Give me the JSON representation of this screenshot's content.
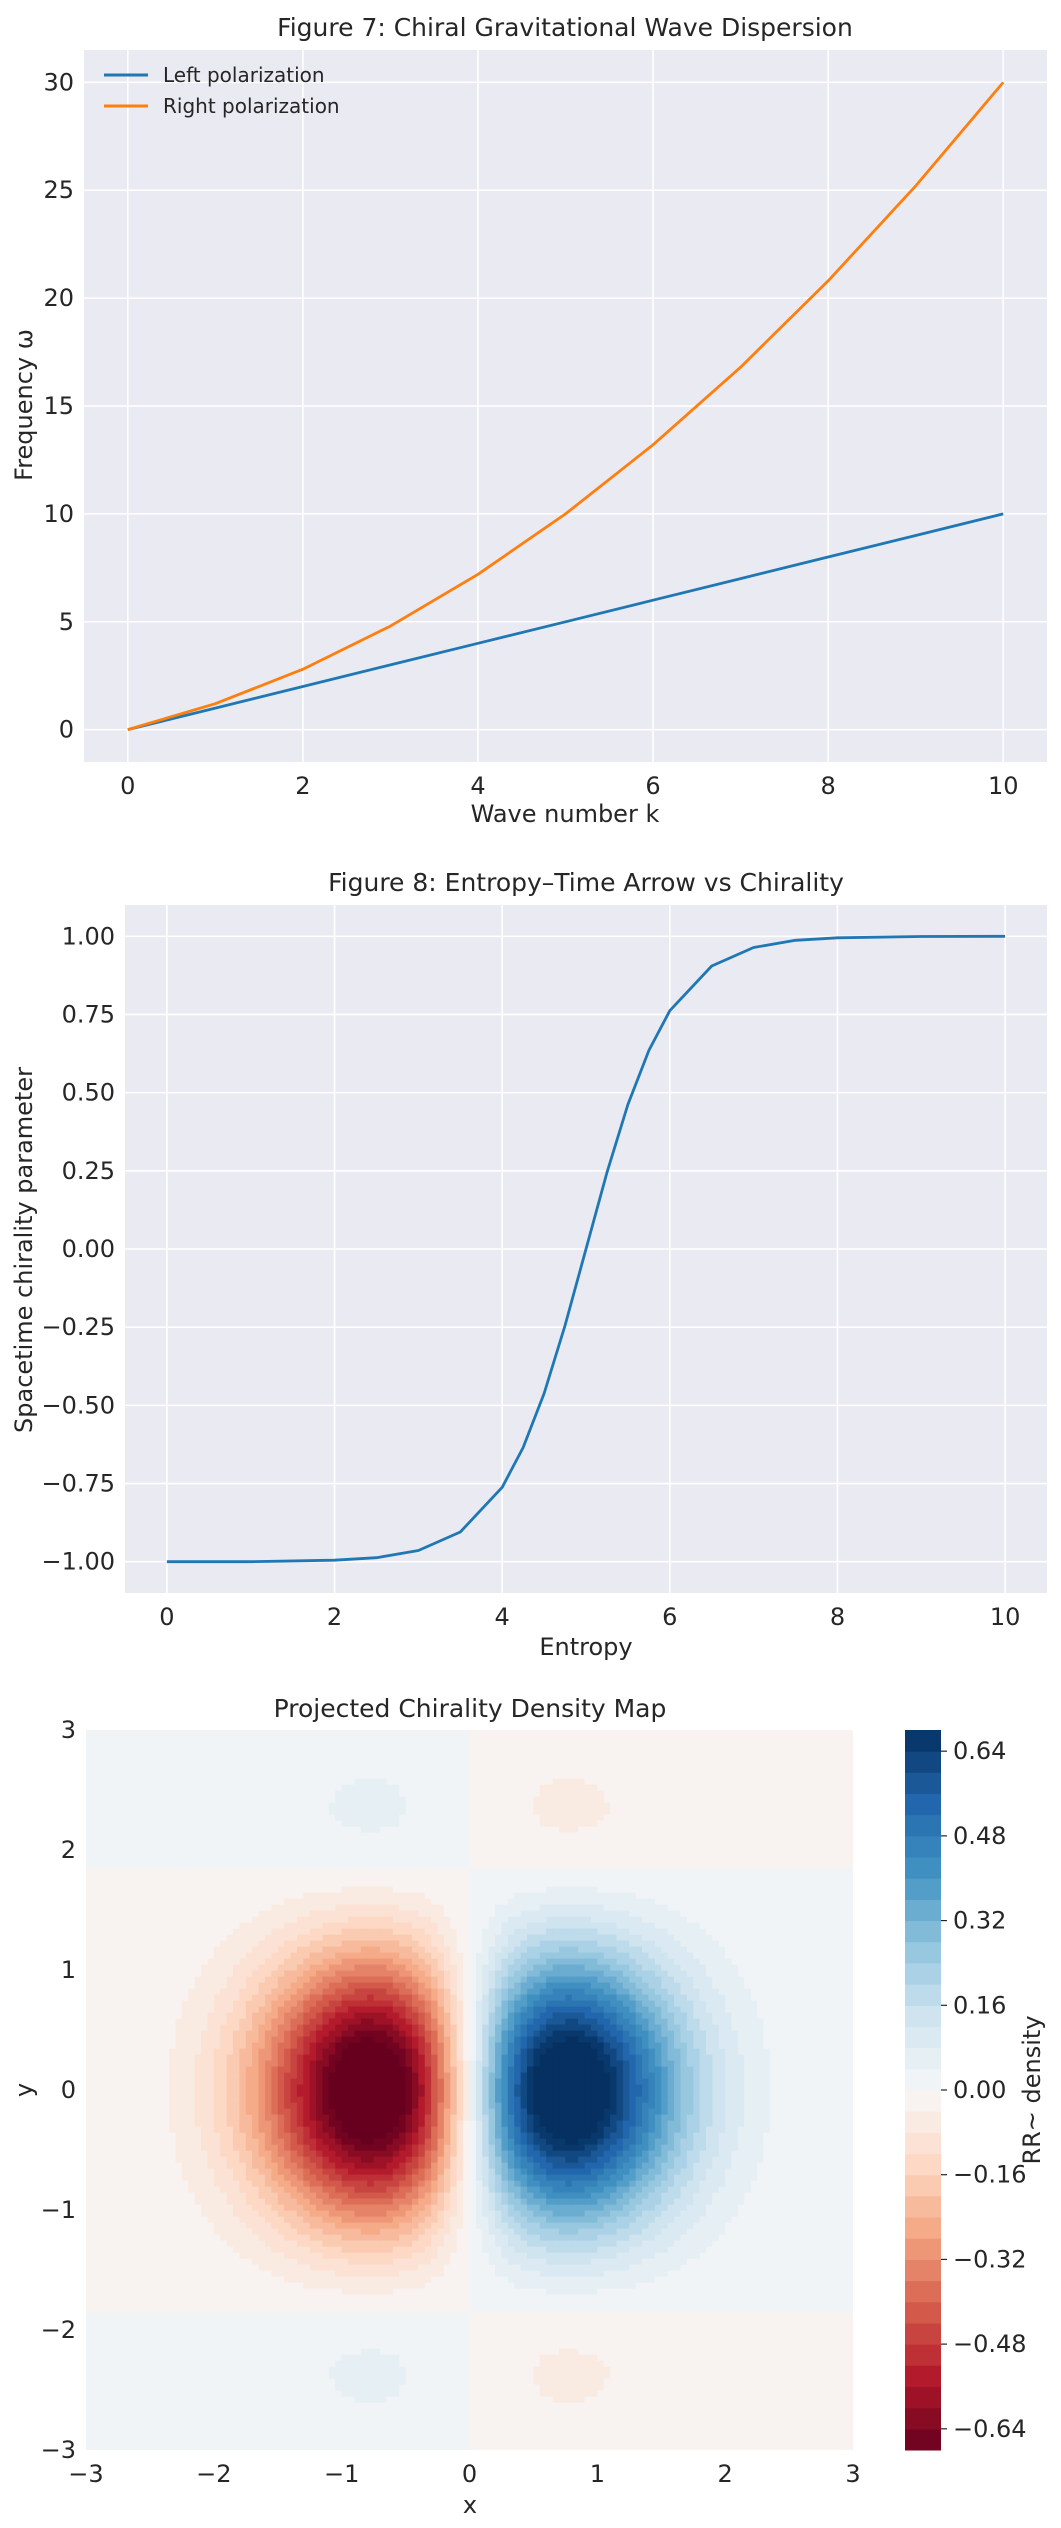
{
  "chart_data": [
    {
      "type": "line",
      "title": "Figure 7: Chiral Gravitational Wave Dispersion",
      "xlabel": "Wave number k",
      "ylabel": "Frequency ω",
      "xlim": [
        -0.5,
        10.5
      ],
      "ylim": [
        -1.5,
        31.5
      ],
      "xticks": [
        0,
        2,
        4,
        6,
        8,
        10
      ],
      "yticks": [
        0,
        5,
        10,
        15,
        20,
        25,
        30
      ],
      "grid": true,
      "legend": "top-left",
      "series": [
        {
          "name": "Left polarization",
          "color": "#1f77b4",
          "x": [
            0,
            1,
            2,
            3,
            4,
            5,
            6,
            7,
            8,
            9,
            10
          ],
          "y": [
            0,
            1,
            2,
            3,
            4,
            5,
            6,
            7,
            8,
            9,
            10
          ]
        },
        {
          "name": "Right polarization",
          "color": "#ff7f0e",
          "x": [
            0,
            1,
            2,
            3,
            4,
            5,
            6,
            7,
            8,
            9,
            10
          ],
          "y": [
            0,
            1.2,
            2.8,
            4.8,
            7.2,
            10.0,
            13.2,
            16.8,
            20.8,
            25.2,
            30.0
          ]
        }
      ]
    },
    {
      "type": "line",
      "title": "Figure 8: Entropy–Time Arrow vs Chirality",
      "xlabel": "Entropy",
      "ylabel": "Spacetime chirality parameter",
      "xlim": [
        -0.5,
        10.5
      ],
      "ylim": [
        -1.1,
        1.1
      ],
      "xticks": [
        0,
        2,
        4,
        6,
        8,
        10
      ],
      "yticks": [
        -1.0,
        -0.75,
        -0.5,
        -0.25,
        0.0,
        0.25,
        0.5,
        0.75,
        1.0
      ],
      "ytick_labels": [
        "−1.00",
        "−0.75",
        "−0.50",
        "−0.25",
        "0.00",
        "0.25",
        "0.50",
        "0.75",
        "1.00"
      ],
      "grid": true,
      "series": [
        {
          "color": "#1f77b4",
          "x": [
            0,
            1,
            2,
            2.5,
            3,
            3.5,
            4,
            4.25,
            4.5,
            4.75,
            5,
            5.25,
            5.5,
            5.75,
            6,
            6.5,
            7,
            7.5,
            8,
            9,
            10
          ],
          "y": [
            -1.0,
            -0.9999,
            -0.995,
            -0.987,
            -0.964,
            -0.905,
            -0.762,
            -0.635,
            -0.462,
            -0.245,
            0.0,
            0.245,
            0.462,
            0.635,
            0.762,
            0.905,
            0.964,
            0.987,
            0.995,
            0.9993,
            1.0
          ]
        }
      ]
    },
    {
      "type": "heatmap",
      "title": "Projected Chirality Density Map",
      "xlabel": "x",
      "ylabel": "y",
      "xlim": [
        -3,
        3
      ],
      "ylim": [
        -3,
        3
      ],
      "xticks": [
        -3,
        -2,
        -1,
        0,
        1,
        2,
        3
      ],
      "xtick_labels": [
        "−3",
        "−2",
        "−1",
        "0",
        "1",
        "2",
        "3"
      ],
      "yticks": [
        -3,
        -2,
        -1,
        0,
        1,
        2,
        3
      ],
      "ytick_labels": [
        "−3",
        "−2",
        "−1",
        "0",
        "1",
        "2",
        "3"
      ],
      "colormap": "RdBu",
      "vmin": -0.68,
      "vmax": 0.68,
      "extrema": [
        {
          "x": -1.1,
          "y": 0,
          "value": -0.68
        },
        {
          "x": 1.1,
          "y": 0,
          "value": 0.68
        },
        {
          "x": -1.1,
          "y": 2.2,
          "value": 0.08
        },
        {
          "x": 1.1,
          "y": 2.2,
          "value": -0.08
        },
        {
          "x": -1.1,
          "y": -2.2,
          "value": 0.08
        },
        {
          "x": 1.1,
          "y": -2.2,
          "value": -0.08
        }
      ],
      "colorbar": {
        "label": "RR~ density",
        "ticks": [
          -0.64,
          -0.48,
          -0.32,
          -0.16,
          0.0,
          0.16,
          0.32,
          0.48,
          0.64
        ],
        "tick_labels": [
          "−0.64",
          "−0.48",
          "−0.32",
          "−0.16",
          "0.00",
          "0.16",
          "0.32",
          "0.48",
          "0.64"
        ]
      }
    }
  ]
}
